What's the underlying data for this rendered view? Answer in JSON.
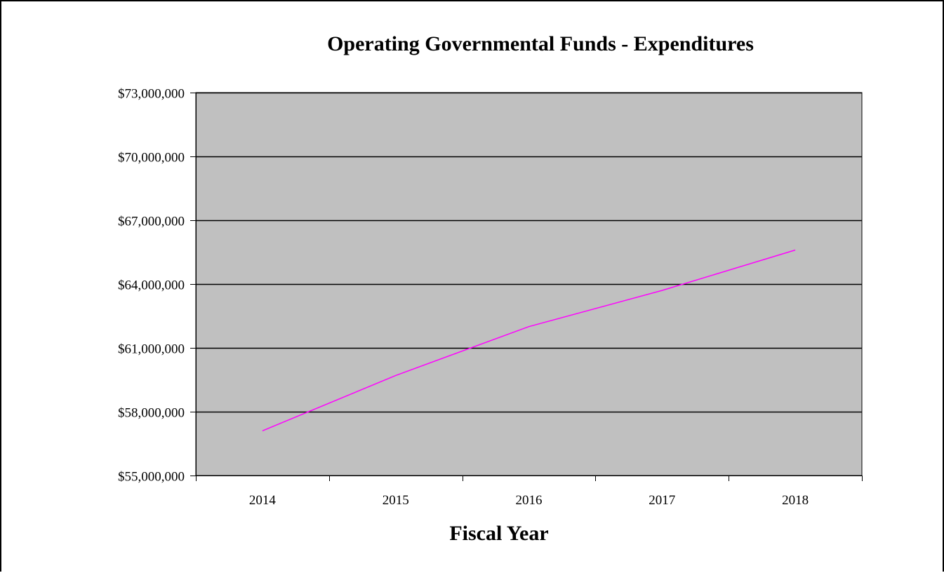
{
  "chart_data": {
    "type": "line",
    "title": "Operating Governmental Funds - Expenditures",
    "xlabel": "Fiscal Year",
    "ylabel": "",
    "categories": [
      "2014",
      "2015",
      "2016",
      "2017",
      "2018"
    ],
    "series": [
      {
        "values": [
          57100000,
          59700000,
          62000000,
          63700000,
          65600000
        ],
        "color": "#ff00ff"
      }
    ],
    "ylim": [
      55000000,
      73000000
    ],
    "yticks": [
      55000000,
      58000000,
      61000000,
      64000000,
      67000000,
      70000000,
      73000000
    ],
    "ytick_labels": [
      "$55,000,000",
      "$58,000,000",
      "$61,000,000",
      "$64,000,000",
      "$67,000,000",
      "$70,000,000",
      "$73,000,000"
    ],
    "grid": true,
    "plot_background": "#c0c0c0",
    "gridline_color": "#000000",
    "legend": "none"
  }
}
